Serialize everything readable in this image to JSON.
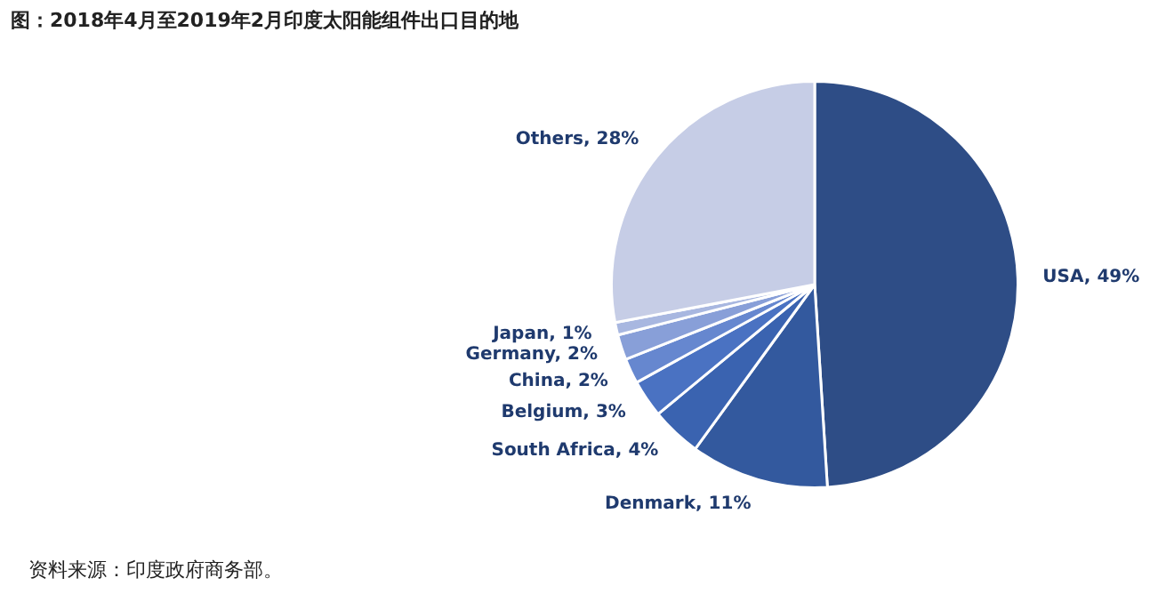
{
  "chart_data": {
    "type": "pie",
    "title": "图：2018年4月至2019年2月印度太阳能组件出口目的地",
    "categories": [
      "USA",
      "Denmark",
      "South Africa",
      "Belgium",
      "China",
      "Germany",
      "Japan",
      "Others"
    ],
    "values": [
      49,
      11,
      4,
      3,
      2,
      2,
      1,
      28
    ],
    "value_labels": [
      "49%",
      "11%",
      "4%",
      "3%",
      "2%",
      "2%",
      "1%",
      "28%"
    ],
    "colors": [
      "#2e4d86",
      "#33599e",
      "#3a63b0",
      "#4a72c2",
      "#6687cf",
      "#889fd8",
      "#a8b7e0",
      "#c6cde6"
    ],
    "legend": false,
    "annotations": [
      "资料来源：印度政府商务部。"
    ]
  }
}
